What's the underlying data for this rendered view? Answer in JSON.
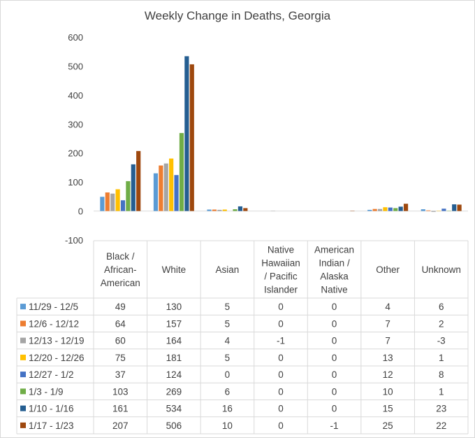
{
  "chart_data": {
    "type": "bar",
    "title": "Weekly Change in Deaths, Georgia",
    "xlabel": "",
    "ylabel": "",
    "ylim": [
      -100,
      600
    ],
    "yticks": [
      -100,
      0,
      100,
      200,
      300,
      400,
      500,
      600
    ],
    "grid": false,
    "legend": "data-table",
    "categories": [
      [
        "Black /",
        "African-",
        "American"
      ],
      [
        "White"
      ],
      [
        "Asian"
      ],
      [
        "Native",
        "Hawaiian",
        "/ Pacific",
        "Islander"
      ],
      [
        "American",
        "Indian /",
        "Alaska",
        "Native"
      ],
      [
        "Other"
      ],
      [
        "Unknown"
      ]
    ],
    "series": [
      {
        "name": "11/29 - 12/5",
        "color": "#5b9bd5",
        "values": [
          49,
          130,
          5,
          0,
          0,
          4,
          6
        ]
      },
      {
        "name": "12/6 - 12/12",
        "color": "#ed7d31",
        "values": [
          64,
          157,
          5,
          0,
          0,
          7,
          2
        ]
      },
      {
        "name": "12/13 - 12/19",
        "color": "#a5a5a5",
        "values": [
          60,
          164,
          4,
          -1,
          0,
          7,
          -3
        ]
      },
      {
        "name": "12/20 - 12/26",
        "color": "#ffc000",
        "values": [
          75,
          181,
          5,
          0,
          0,
          13,
          1
        ]
      },
      {
        "name": "12/27 - 1/2",
        "color": "#4472c4",
        "values": [
          37,
          124,
          0,
          0,
          0,
          12,
          8
        ]
      },
      {
        "name": "1/3 - 1/9",
        "color": "#70ad47",
        "values": [
          103,
          269,
          6,
          0,
          0,
          10,
          1
        ]
      },
      {
        "name": "1/10 - 1/16",
        "color": "#255e91",
        "values": [
          161,
          534,
          16,
          0,
          0,
          15,
          23
        ]
      },
      {
        "name": "1/17 - 1/23",
        "color": "#9e480e",
        "values": [
          207,
          506,
          10,
          0,
          -1,
          25,
          22
        ]
      }
    ]
  }
}
